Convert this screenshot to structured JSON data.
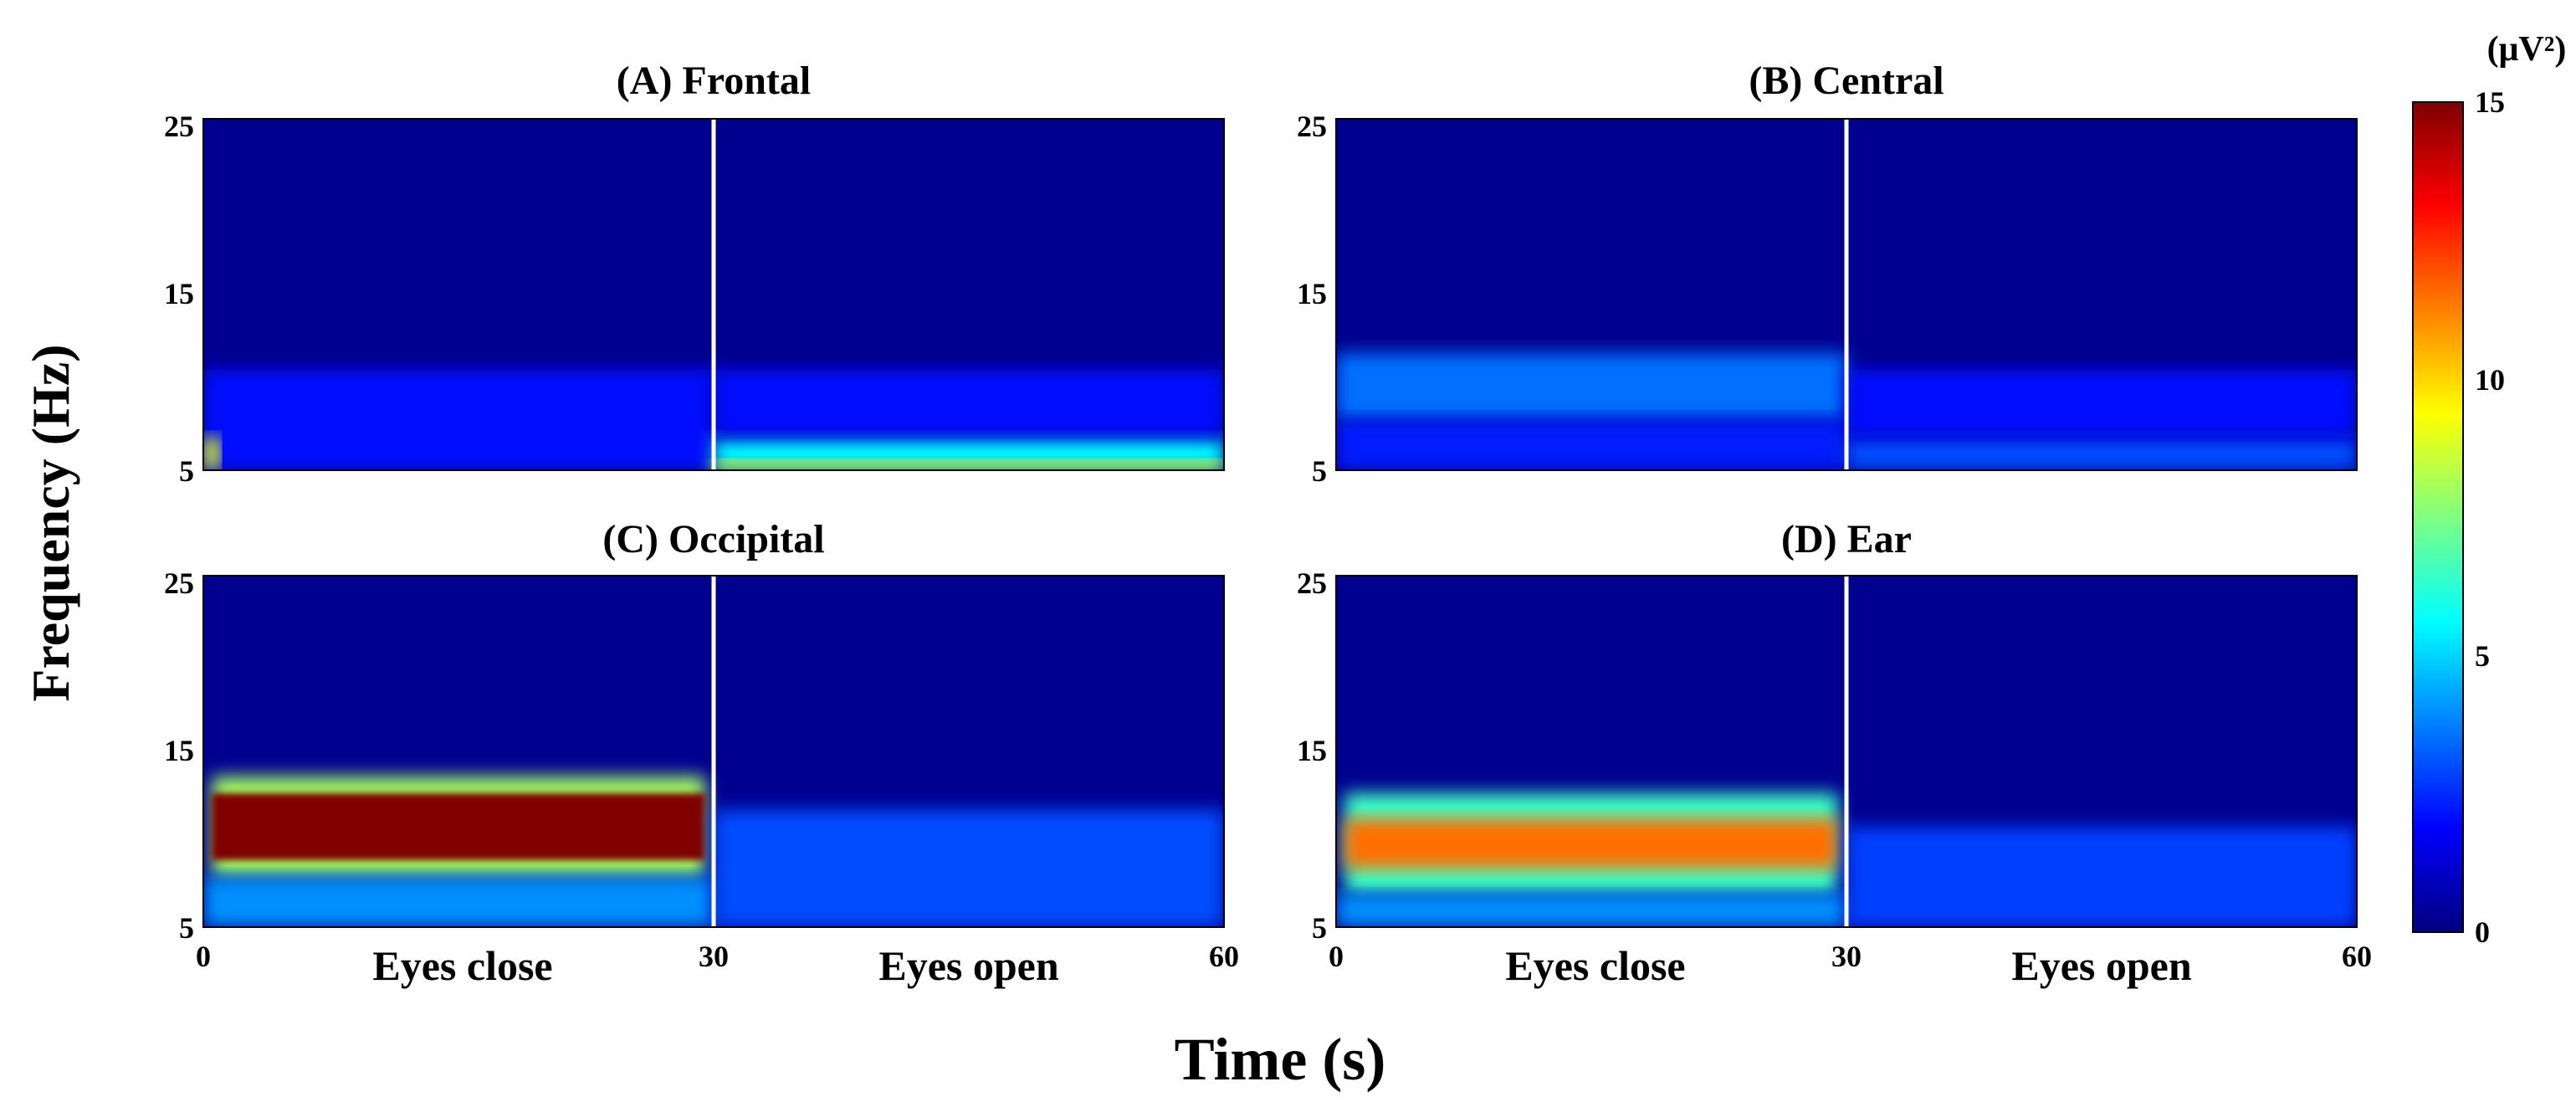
{
  "chart_data": {
    "type": "heatmap",
    "shared": {
      "ylabel": "Frequency (Hz)",
      "xlabel": "Time (s)",
      "xlim": [
        0,
        60
      ],
      "ylim": [
        5,
        26
      ],
      "x_ticks": [
        "0",
        "30",
        "60"
      ],
      "y_ticks": [
        "5",
        "15",
        "25"
      ],
      "condition_labels": [
        "Eyes close",
        "Eyes open"
      ],
      "condition_boundary": 30
    },
    "colorbar": {
      "unit": "(μV²)",
      "range": [
        0,
        15
      ],
      "ticks": [
        "0",
        "5",
        "10",
        "15"
      ],
      "colormap": "jet"
    },
    "panels": [
      {
        "title": "(A) Frontal",
        "regions": [
          {
            "t": [
              0,
              30
            ],
            "f": [
              5,
              11
            ],
            "power": 2.0
          },
          {
            "t": [
              0,
              1
            ],
            "f": [
              5,
              7
            ],
            "power": 9.0
          },
          {
            "t": [
              30,
              60
            ],
            "f": [
              5,
              7
            ],
            "power": 5.5
          },
          {
            "t": [
              30,
              60
            ],
            "f": [
              5,
              5.6
            ],
            "power": 9.5
          },
          {
            "t": [
              30,
              60
            ],
            "f": [
              7,
              11
            ],
            "power": 2.0
          }
        ]
      },
      {
        "title": "(B) Central",
        "regions": [
          {
            "t": [
              0,
              30
            ],
            "f": [
              8,
              12
            ],
            "power": 3.5
          },
          {
            "t": [
              0,
              30
            ],
            "f": [
              5,
              8
            ],
            "power": 2.3
          },
          {
            "t": [
              30,
              60
            ],
            "f": [
              5,
              7
            ],
            "power": 3.0
          },
          {
            "t": [
              30,
              60
            ],
            "f": [
              7,
              11
            ],
            "power": 2.0
          }
        ]
      },
      {
        "title": "(C) Occipital",
        "regions": [
          {
            "t": [
              0.5,
              29.5
            ],
            "f": [
              8,
              14
            ],
            "power": 8.0
          },
          {
            "t": [
              0.5,
              29.5
            ],
            "f": [
              9,
              13
            ],
            "power": 15.0
          },
          {
            "t": [
              0,
              30
            ],
            "f": [
              5,
              8
            ],
            "power": 4.0
          },
          {
            "t": [
              30,
              60
            ],
            "f": [
              5,
              12
            ],
            "power": 3.0
          }
        ]
      },
      {
        "title": "(D) Ear",
        "regions": [
          {
            "t": [
              0.5,
              29.5
            ],
            "f": [
              7,
              13
            ],
            "power": 6.5
          },
          {
            "t": [
              0.5,
              29.5
            ],
            "f": [
              8.5,
              11.5
            ],
            "power": 11.5
          },
          {
            "t": [
              0,
              30
            ],
            "f": [
              5,
              7
            ],
            "power": 4.0
          },
          {
            "t": [
              30,
              60
            ],
            "f": [
              5,
              11
            ],
            "power": 2.8
          }
        ]
      }
    ]
  }
}
